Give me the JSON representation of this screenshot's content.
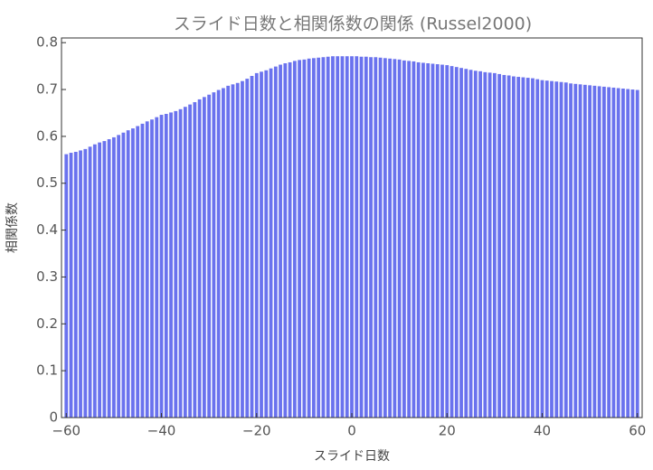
{
  "chart_data": {
    "type": "bar",
    "title": "スライド日数と相関係数の関係 (Russel2000)",
    "x_label": "スライド日数",
    "y_label": "相関係数",
    "color": "#6a72ee",
    "x": [
      -60,
      -59,
      -58,
      -57,
      -56,
      -55,
      -54,
      -53,
      -52,
      -51,
      -50,
      -49,
      -48,
      -47,
      -46,
      -45,
      -44,
      -43,
      -42,
      -41,
      -40,
      -39,
      -38,
      -37,
      -36,
      -35,
      -34,
      -33,
      -32,
      -31,
      -30,
      -29,
      -28,
      -27,
      -26,
      -25,
      -24,
      -23,
      -22,
      -21,
      -20,
      -19,
      -18,
      -17,
      -16,
      -15,
      -14,
      -13,
      -12,
      -11,
      -10,
      -9,
      -8,
      -7,
      -6,
      -5,
      -4,
      -3,
      -2,
      -1,
      0,
      1,
      2,
      3,
      4,
      5,
      6,
      7,
      8,
      9,
      10,
      11,
      12,
      13,
      14,
      15,
      16,
      17,
      18,
      19,
      20,
      21,
      22,
      23,
      24,
      25,
      26,
      27,
      28,
      29,
      30,
      31,
      32,
      33,
      34,
      35,
      36,
      37,
      38,
      39,
      40,
      41,
      42,
      43,
      44,
      45,
      46,
      47,
      48,
      49,
      50,
      51,
      52,
      53,
      54,
      55,
      56,
      57,
      58,
      59,
      60
    ],
    "values": [
      0.562,
      0.565,
      0.567,
      0.57,
      0.573,
      0.578,
      0.583,
      0.587,
      0.59,
      0.594,
      0.598,
      0.603,
      0.608,
      0.613,
      0.617,
      0.622,
      0.627,
      0.632,
      0.636,
      0.641,
      0.646,
      0.648,
      0.651,
      0.654,
      0.658,
      0.663,
      0.668,
      0.673,
      0.679,
      0.684,
      0.689,
      0.694,
      0.699,
      0.703,
      0.708,
      0.711,
      0.714,
      0.718,
      0.723,
      0.729,
      0.735,
      0.738,
      0.741,
      0.745,
      0.749,
      0.753,
      0.756,
      0.758,
      0.761,
      0.763,
      0.764,
      0.766,
      0.767,
      0.768,
      0.769,
      0.77,
      0.771,
      0.771,
      0.771,
      0.771,
      0.771,
      0.771,
      0.77,
      0.77,
      0.769,
      0.769,
      0.768,
      0.767,
      0.766,
      0.765,
      0.764,
      0.762,
      0.761,
      0.76,
      0.758,
      0.757,
      0.756,
      0.755,
      0.754,
      0.753,
      0.752,
      0.75,
      0.748,
      0.746,
      0.744,
      0.742,
      0.74,
      0.739,
      0.737,
      0.736,
      0.735,
      0.733,
      0.731,
      0.73,
      0.728,
      0.727,
      0.726,
      0.725,
      0.724,
      0.722,
      0.72,
      0.719,
      0.718,
      0.717,
      0.716,
      0.715,
      0.713,
      0.712,
      0.711,
      0.71,
      0.709,
      0.708,
      0.707,
      0.706,
      0.705,
      0.704,
      0.703,
      0.702,
      0.701,
      0.7,
      0.699
    ],
    "xlim": [
      -61,
      61
    ],
    "xticks": [
      {
        "value": -60,
        "label": "−60"
      },
      {
        "value": -40,
        "label": "−40"
      },
      {
        "value": -20,
        "label": "−20"
      },
      0,
      20,
      40,
      60
    ],
    "ylim": [
      0,
      0.81
    ],
    "yticks": [
      0,
      0.1,
      0.2,
      0.3,
      0.4,
      0.5,
      0.6,
      0.7,
      0.8
    ]
  }
}
